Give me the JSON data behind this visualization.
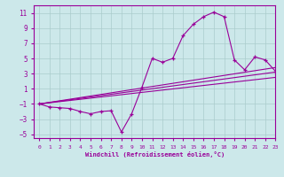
{
  "background_color": "#cce8ea",
  "grid_color": "#aacccc",
  "line_color": "#990099",
  "xlabel": "Windchill (Refroidissement éolien,°C)",
  "xlim": [
    -0.5,
    23
  ],
  "ylim": [
    -5.5,
    12
  ],
  "yticks": [
    -5,
    -3,
    -1,
    1,
    3,
    5,
    7,
    9,
    11
  ],
  "xticks": [
    0,
    1,
    2,
    3,
    4,
    5,
    6,
    7,
    8,
    9,
    10,
    11,
    12,
    13,
    14,
    15,
    16,
    17,
    18,
    19,
    20,
    21,
    22,
    23
  ],
  "series1_x": [
    0,
    1,
    2,
    3,
    4,
    5,
    6,
    7,
    8,
    9,
    10,
    11,
    12,
    13,
    14,
    15,
    16,
    17,
    18,
    19,
    20,
    21,
    22,
    23
  ],
  "series1_y": [
    -1.0,
    -1.4,
    -1.5,
    -1.6,
    -2.0,
    -2.3,
    -2.0,
    -1.9,
    -4.7,
    -2.3,
    1.2,
    5.0,
    4.5,
    5.0,
    8.0,
    9.5,
    10.5,
    11.1,
    10.5,
    4.8,
    3.5,
    5.2,
    4.8,
    3.3
  ],
  "series2_x": [
    0,
    23
  ],
  "series2_y": [
    -1.0,
    2.5
  ],
  "series3_x": [
    0,
    23
  ],
  "series3_y": [
    -1.0,
    3.2
  ],
  "series4_x": [
    0,
    23
  ],
  "series4_y": [
    -1.0,
    3.8
  ]
}
